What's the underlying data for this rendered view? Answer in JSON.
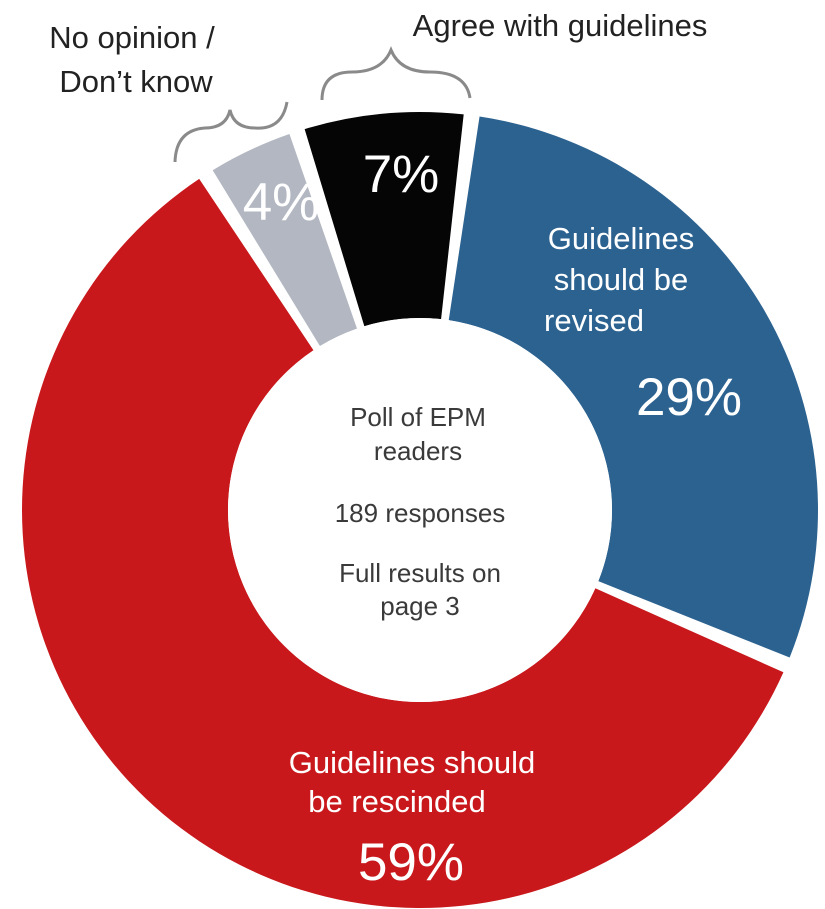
{
  "chart_data": {
    "type": "pie",
    "donut": true,
    "slices": [
      {
        "label": "Guidelines should be revised",
        "value": 29,
        "value_label": "29%",
        "color": "#2c6290"
      },
      {
        "label": "Guidelines should be rescinded",
        "value": 59,
        "value_label": "59%",
        "color": "#c8181c"
      },
      {
        "label": "No opinion / Don’t know",
        "value": 4,
        "value_label": "4%",
        "color": "#b2b7c1"
      },
      {
        "label": "Agree with guidelines",
        "value": 7,
        "value_label": "7%",
        "color": "#050505"
      }
    ],
    "center_text": {
      "poll_line1": "Poll of EPM",
      "poll_line2": "readers",
      "responses": "189 responses",
      "results_line1": "Full results on",
      "results_line2": "page 3"
    },
    "labels": {
      "no_opinion_line1": "No opinion /",
      "no_opinion_line2": "Don’t know",
      "agree": "Agree with guidelines",
      "revised_line1": "Guidelines",
      "revised_line2": "should be",
      "revised_line3": "revised",
      "rescinded_line1": "Guidelines should",
      "rescinded_line2": "be rescinded"
    }
  }
}
